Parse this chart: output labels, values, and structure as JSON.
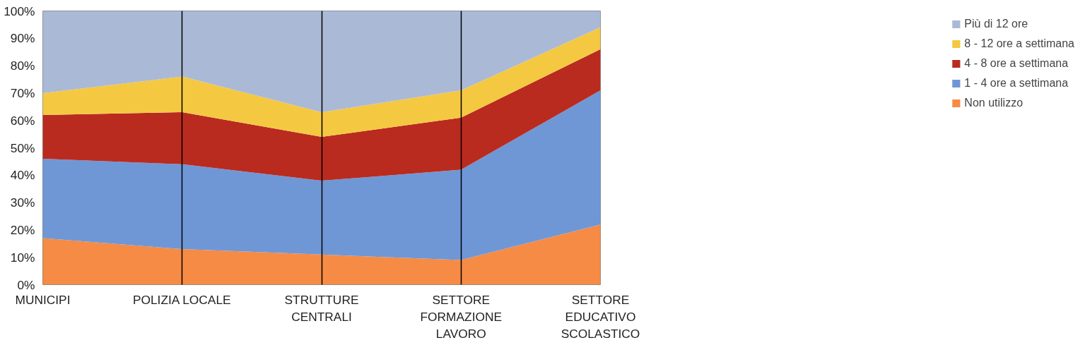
{
  "chart_data": {
    "type": "area",
    "stacked": true,
    "categories": [
      "MUNICIPI",
      "POLIZIA LOCALE",
      "STRUTTURE CENTRALI",
      "SETTORE FORMAZIONE LAVORO",
      "SETTORE EDUCATIVO SCOLASTICO"
    ],
    "series": [
      {
        "name": "Non utilizzo",
        "color": "#f68b45",
        "values": [
          17,
          13,
          11,
          9,
          22
        ]
      },
      {
        "name": "1 - 4 ore a settimana",
        "color": "#6f97d6",
        "values": [
          29,
          31,
          27,
          33,
          49
        ]
      },
      {
        "name": "4 - 8 ore a settimana",
        "color": "#b92b1f",
        "values": [
          16,
          19,
          16,
          19,
          15
        ]
      },
      {
        "name": "8 - 12 ore a settimana",
        "color": "#f5c842",
        "values": [
          8,
          13,
          9,
          10,
          8
        ]
      },
      {
        "name": "Più di 12 ore",
        "color": "#aab9d6",
        "values": [
          30,
          24,
          37,
          29,
          6
        ]
      }
    ],
    "ylim": [
      0,
      100
    ],
    "yticks": [
      {
        "value": 0,
        "label": "0%"
      },
      {
        "value": 10,
        "label": "10%"
      },
      {
        "value": 20,
        "label": "20%"
      },
      {
        "value": 30,
        "label": "30%"
      },
      {
        "value": 40,
        "label": "40%"
      },
      {
        "value": 50,
        "label": "50%"
      },
      {
        "value": 60,
        "label": "60%"
      },
      {
        "value": 70,
        "label": "70%"
      },
      {
        "value": 80,
        "label": "80%"
      },
      {
        "value": 90,
        "label": "90%"
      },
      {
        "value": 100,
        "label": "100%"
      }
    ],
    "grid": "x",
    "legend": "right"
  }
}
